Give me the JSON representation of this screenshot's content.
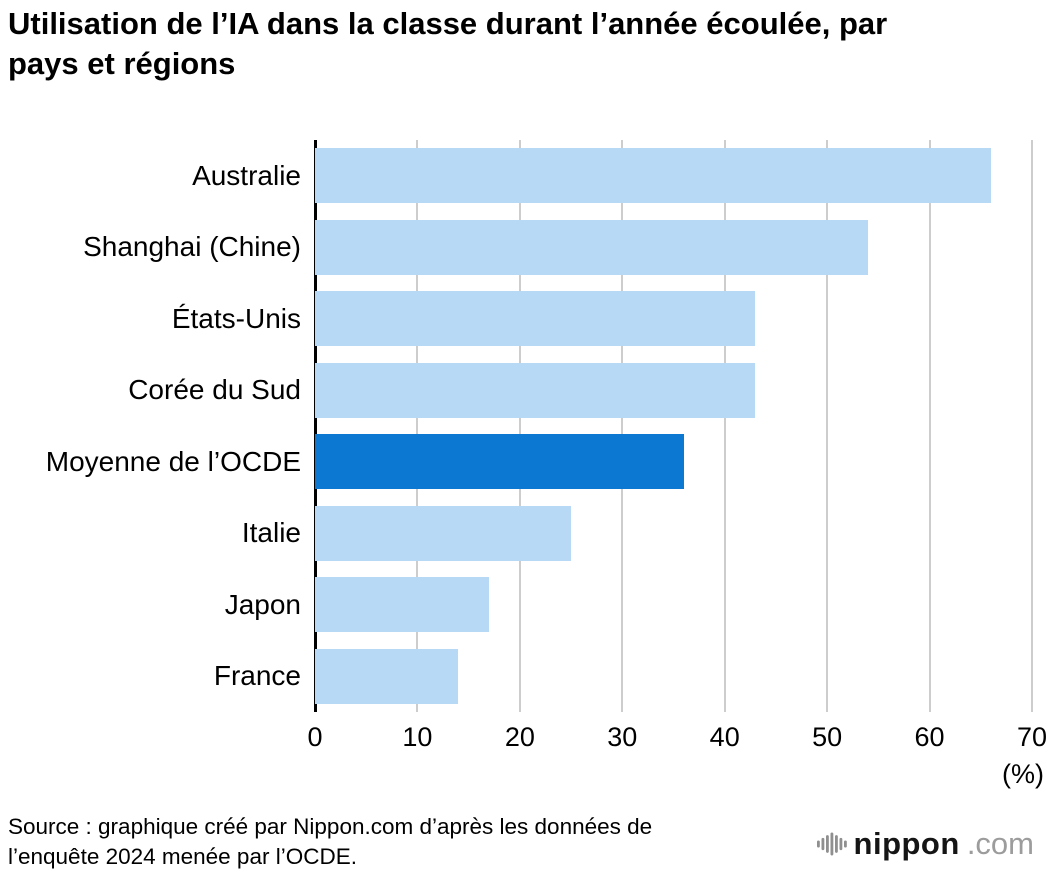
{
  "title": "Utilisation de l’IA dans la classe durant l’année écoulée, par pays et régions",
  "chart_data": {
    "type": "bar",
    "orientation": "horizontal",
    "categories": [
      "Australie",
      "Shanghai (Chine)",
      "États-Unis",
      "Corée du Sud",
      "Moyenne de l’OCDE",
      "Italie",
      "Japon",
      "France"
    ],
    "values": [
      66,
      54,
      43,
      43,
      36,
      25,
      17,
      14
    ],
    "highlight_index": 4,
    "highlight_category": "Moyenne de l’OCDE",
    "xlim": [
      0,
      70
    ],
    "xticks": [
      0,
      10,
      20,
      30,
      40,
      50,
      60,
      70
    ],
    "unit_label": "(%)",
    "bar_color": "#b7d9f6",
    "highlight_color": "#0d78d2",
    "gridline_color": "#cdcdcd",
    "grid": true,
    "legend": "none"
  },
  "source": {
    "text": "Source : graphique créé par Nippon.com d’après les données de l’enquête 2024 menée par l’OCDE."
  },
  "branding": {
    "name": "nippon",
    "tld": ".com",
    "icon": "nippon-soundbars-icon"
  }
}
